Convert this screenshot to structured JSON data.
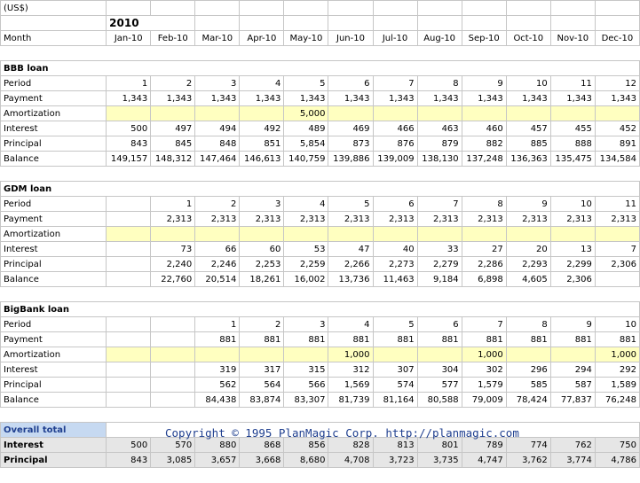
{
  "currency_note": "(US$)",
  "year": "2010",
  "month_label": "Month",
  "months": [
    "Jan-10",
    "Feb-10",
    "Mar-10",
    "Apr-10",
    "May-10",
    "Jun-10",
    "Jul-10",
    "Aug-10",
    "Sep-10",
    "Oct-10",
    "Nov-10",
    "Dec-10"
  ],
  "sections": [
    {
      "title": "BBB loan",
      "rows": [
        {
          "label": "Period",
          "values": [
            "1",
            "2",
            "3",
            "4",
            "5",
            "6",
            "7",
            "8",
            "9",
            "10",
            "11",
            "12"
          ]
        },
        {
          "label": "Payment",
          "values": [
            "1,343",
            "1,343",
            "1,343",
            "1,343",
            "1,343",
            "1,343",
            "1,343",
            "1,343",
            "1,343",
            "1,343",
            "1,343",
            "1,343"
          ]
        },
        {
          "label": "Amortization",
          "values": [
            "",
            "",
            "",
            "",
            "5,000",
            "",
            "",
            "",
            "",
            "",
            "",
            ""
          ]
        },
        {
          "label": "Interest",
          "values": [
            "500",
            "497",
            "494",
            "492",
            "489",
            "469",
            "466",
            "463",
            "460",
            "457",
            "455",
            "452"
          ]
        },
        {
          "label": "Principal",
          "values": [
            "843",
            "845",
            "848",
            "851",
            "5,854",
            "873",
            "876",
            "879",
            "882",
            "885",
            "888",
            "891"
          ]
        },
        {
          "label": "Balance",
          "values": [
            "149,157",
            "148,312",
            "147,464",
            "146,613",
            "140,759",
            "139,886",
            "139,009",
            "138,130",
            "137,248",
            "136,363",
            "135,475",
            "134,584"
          ]
        }
      ]
    },
    {
      "title": "GDM loan",
      "rows": [
        {
          "label": "Period",
          "values": [
            "",
            "1",
            "2",
            "3",
            "4",
            "5",
            "6",
            "7",
            "8",
            "9",
            "10",
            "11"
          ]
        },
        {
          "label": "Payment",
          "values": [
            "",
            "2,313",
            "2,313",
            "2,313",
            "2,313",
            "2,313",
            "2,313",
            "2,313",
            "2,313",
            "2,313",
            "2,313",
            "2,313"
          ]
        },
        {
          "label": "Amortization",
          "values": [
            "",
            "",
            "",
            "",
            "",
            "",
            "",
            "",
            "",
            "",
            "",
            ""
          ]
        },
        {
          "label": "Interest",
          "values": [
            "",
            "73",
            "66",
            "60",
            "53",
            "47",
            "40",
            "33",
            "27",
            "20",
            "13",
            "7"
          ]
        },
        {
          "label": "Principal",
          "values": [
            "",
            "2,240",
            "2,246",
            "2,253",
            "2,259",
            "2,266",
            "2,273",
            "2,279",
            "2,286",
            "2,293",
            "2,299",
            "2,306"
          ]
        },
        {
          "label": "Balance",
          "values": [
            "",
            "22,760",
            "20,514",
            "18,261",
            "16,002",
            "13,736",
            "11,463",
            "9,184",
            "6,898",
            "4,605",
            "2,306",
            ""
          ]
        }
      ]
    },
    {
      "title": "BigBank loan",
      "rows": [
        {
          "label": "Period",
          "values": [
            "",
            "",
            "1",
            "2",
            "3",
            "4",
            "5",
            "6",
            "7",
            "8",
            "9",
            "10"
          ]
        },
        {
          "label": "Payment",
          "values": [
            "",
            "",
            "881",
            "881",
            "881",
            "881",
            "881",
            "881",
            "881",
            "881",
            "881",
            "881"
          ]
        },
        {
          "label": "Amortization",
          "values": [
            "",
            "",
            "",
            "",
            "",
            "1,000",
            "",
            "",
            "1,000",
            "",
            "",
            "1,000"
          ]
        },
        {
          "label": "Interest",
          "values": [
            "",
            "",
            "319",
            "317",
            "315",
            "312",
            "307",
            "304",
            "302",
            "296",
            "294",
            "292"
          ]
        },
        {
          "label": "Principal",
          "values": [
            "",
            "",
            "562",
            "564",
            "566",
            "1,569",
            "574",
            "577",
            "1,579",
            "585",
            "587",
            "1,589"
          ]
        },
        {
          "label": "Balance",
          "values": [
            "",
            "",
            "84,438",
            "83,874",
            "83,307",
            "81,739",
            "81,164",
            "80,588",
            "79,009",
            "78,424",
            "77,837",
            "76,248"
          ]
        }
      ]
    }
  ],
  "overall_total_label": "Overall total",
  "totals": [
    {
      "label": "Interest",
      "values": [
        "500",
        "570",
        "880",
        "868",
        "856",
        "828",
        "813",
        "801",
        "789",
        "774",
        "762",
        "750"
      ]
    },
    {
      "label": "Principal",
      "values": [
        "843",
        "3,085",
        "3,657",
        "3,668",
        "8,680",
        "4,708",
        "3,723",
        "3,735",
        "4,747",
        "3,762",
        "3,774",
        "4,786"
      ]
    }
  ],
  "copyright": "Copyright © 1995 PlanMagic Corp. http://planmagic.com"
}
